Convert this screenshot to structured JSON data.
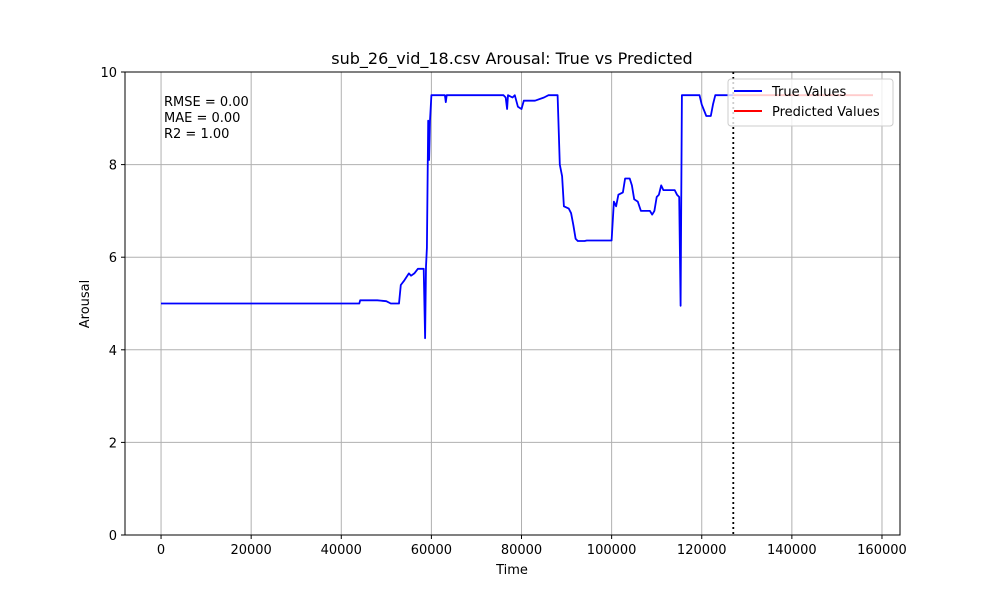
{
  "chart_data": {
    "type": "line",
    "title": "sub_26_vid_18.csv Arousal: True vs Predicted",
    "xlabel": "Time",
    "ylabel": "Arousal",
    "xlim": [
      -8000,
      164000
    ],
    "ylim": [
      0,
      10
    ],
    "xticks": [
      0,
      20000,
      40000,
      60000,
      80000,
      100000,
      120000,
      140000,
      160000
    ],
    "yticks": [
      0,
      2,
      4,
      6,
      8,
      10
    ],
    "grid": true,
    "legend_position": "top-right",
    "metrics": [
      "RMSE = 0.00",
      "MAE = 0.00",
      "R2 = 1.00"
    ],
    "vline": {
      "x": 127000,
      "style": "dotted",
      "color": "#000000"
    },
    "series": [
      {
        "name": "True Values",
        "color": "#0000ff",
        "points": [
          [
            0,
            5.0
          ],
          [
            44000,
            5.0
          ],
          [
            44200,
            5.07
          ],
          [
            48000,
            5.07
          ],
          [
            50000,
            5.05
          ],
          [
            51000,
            5.0
          ],
          [
            52800,
            5.0
          ],
          [
            53200,
            5.4
          ],
          [
            54000,
            5.5
          ],
          [
            55000,
            5.65
          ],
          [
            55500,
            5.6
          ],
          [
            56200,
            5.65
          ],
          [
            57000,
            5.75
          ],
          [
            58300,
            5.75
          ],
          [
            58600,
            4.25
          ],
          [
            58800,
            5.8
          ],
          [
            59000,
            6.2
          ],
          [
            59300,
            8.95
          ],
          [
            59500,
            8.1
          ],
          [
            59700,
            8.95
          ],
          [
            60000,
            9.5
          ],
          [
            63000,
            9.5
          ],
          [
            63200,
            9.35
          ],
          [
            63400,
            9.5
          ],
          [
            76000,
            9.5
          ],
          [
            76500,
            9.45
          ],
          [
            76800,
            9.2
          ],
          [
            77000,
            9.5
          ],
          [
            78000,
            9.45
          ],
          [
            78500,
            9.5
          ],
          [
            79200,
            9.25
          ],
          [
            80000,
            9.2
          ],
          [
            80500,
            9.38
          ],
          [
            83000,
            9.38
          ],
          [
            85000,
            9.45
          ],
          [
            86000,
            9.5
          ],
          [
            88000,
            9.5
          ],
          [
            88500,
            8.0
          ],
          [
            89000,
            7.75
          ],
          [
            89400,
            7.1
          ],
          [
            90500,
            7.05
          ],
          [
            91000,
            6.95
          ],
          [
            91500,
            6.7
          ],
          [
            92000,
            6.4
          ],
          [
            92500,
            6.35
          ],
          [
            94000,
            6.35
          ],
          [
            94500,
            6.36
          ],
          [
            100000,
            6.36
          ],
          [
            100500,
            7.2
          ],
          [
            101000,
            7.1
          ],
          [
            101500,
            7.35
          ],
          [
            102500,
            7.4
          ],
          [
            103000,
            7.7
          ],
          [
            104000,
            7.7
          ],
          [
            104500,
            7.55
          ],
          [
            105000,
            7.25
          ],
          [
            105800,
            7.2
          ],
          [
            106500,
            7.0
          ],
          [
            107000,
            7.0
          ],
          [
            108500,
            7.0
          ],
          [
            109000,
            6.92
          ],
          [
            109500,
            7.0
          ],
          [
            110000,
            7.3
          ],
          [
            110500,
            7.35
          ],
          [
            111000,
            7.55
          ],
          [
            111500,
            7.45
          ],
          [
            114000,
            7.45
          ],
          [
            114500,
            7.35
          ],
          [
            115000,
            7.3
          ],
          [
            115300,
            4.95
          ],
          [
            115600,
            9.5
          ],
          [
            119500,
            9.5
          ],
          [
            120000,
            9.3
          ],
          [
            121000,
            9.05
          ],
          [
            122000,
            9.05
          ],
          [
            122500,
            9.3
          ],
          [
            123000,
            9.5
          ],
          [
            127000,
            9.5
          ]
        ]
      },
      {
        "name": "Predicted Values",
        "color": "#ff0000",
        "points": [
          [
            127000,
            9.5
          ],
          [
            158000,
            9.5
          ]
        ]
      }
    ]
  }
}
